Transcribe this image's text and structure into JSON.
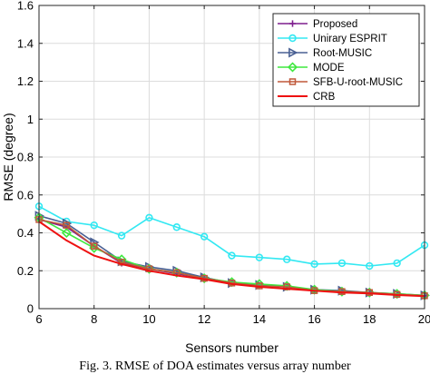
{
  "chart_data": {
    "type": "line",
    "title": "",
    "xlabel": "Sensors number",
    "ylabel": "RMSE (degree)",
    "xlim": [
      6,
      20
    ],
    "ylim": [
      0,
      1.6
    ],
    "xticks": [
      6,
      8,
      10,
      12,
      14,
      16,
      18,
      20
    ],
    "yticks": [
      0,
      0.2,
      0.4,
      0.6,
      0.8,
      1,
      1.2,
      1.4,
      1.6
    ],
    "grid": true,
    "legend_position": "top-right",
    "x": [
      6,
      7,
      8,
      9,
      10,
      11,
      12,
      13,
      14,
      15,
      16,
      17,
      18,
      19,
      20
    ],
    "series": [
      {
        "name": "Proposed",
        "color": "#7e1e8e",
        "marker": "plus",
        "values": [
          0.47,
          0.43,
          0.33,
          0.24,
          0.21,
          0.185,
          0.16,
          0.135,
          0.12,
          0.115,
          0.095,
          0.09,
          0.085,
          0.075,
          0.068
        ]
      },
      {
        "name": "Unirary ESPRIT",
        "color": "#33e8f2",
        "marker": "circle",
        "values": [
          0.54,
          0.46,
          0.44,
          0.385,
          0.48,
          0.43,
          0.38,
          0.28,
          0.27,
          0.26,
          0.235,
          0.24,
          0.225,
          0.24,
          0.335
        ]
      },
      {
        "name": "Root-MUSIC",
        "color": "#4a6094",
        "marker": "triangle",
        "values": [
          0.49,
          0.45,
          0.35,
          0.25,
          0.22,
          0.2,
          0.165,
          0.135,
          0.125,
          0.115,
          0.1,
          0.095,
          0.085,
          0.078,
          0.07
        ]
      },
      {
        "name": "MODE",
        "color": "#3fe83f",
        "marker": "diamond",
        "values": [
          0.48,
          0.4,
          0.32,
          0.26,
          0.21,
          0.19,
          0.16,
          0.14,
          0.13,
          0.12,
          0.1,
          0.09,
          0.085,
          0.078,
          0.07
        ]
      },
      {
        "name": "SFB-U-root-MUSIC",
        "color": "#c0583a",
        "marker": "square",
        "values": [
          0.47,
          0.44,
          0.33,
          0.245,
          0.21,
          0.19,
          0.16,
          0.135,
          0.12,
          0.115,
          0.095,
          0.09,
          0.085,
          0.075,
          0.068
        ]
      },
      {
        "name": "CRB",
        "color": "#ee1111",
        "marker": "none",
        "values": [
          0.46,
          0.36,
          0.28,
          0.235,
          0.2,
          0.175,
          0.155,
          0.13,
          0.115,
          0.105,
          0.095,
          0.085,
          0.08,
          0.072,
          0.066
        ]
      }
    ]
  },
  "caption": "Fig. 3. RMSE of DOA estimates versus array number"
}
